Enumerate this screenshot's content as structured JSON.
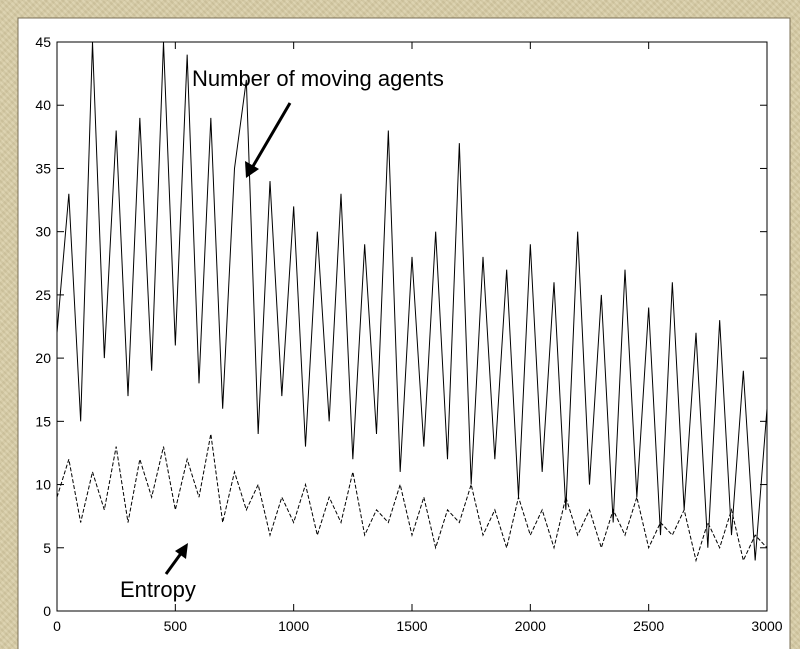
{
  "chart_data": {
    "type": "line",
    "x": [
      0,
      50,
      100,
      150,
      200,
      250,
      300,
      350,
      400,
      450,
      500,
      550,
      600,
      650,
      700,
      750,
      800,
      850,
      900,
      950,
      1000,
      1050,
      1100,
      1150,
      1200,
      1250,
      1300,
      1350,
      1400,
      1450,
      1500,
      1550,
      1600,
      1650,
      1700,
      1750,
      1800,
      1850,
      1900,
      1950,
      2000,
      2050,
      2100,
      2150,
      2200,
      2250,
      2300,
      2350,
      2400,
      2450,
      2500,
      2550,
      2600,
      2650,
      2700,
      2750,
      2800,
      2850,
      2900,
      2950,
      3000
    ],
    "series": [
      {
        "name": "Number of moving agents",
        "color": "#000000",
        "style": "solid",
        "values": [
          22,
          33,
          15,
          45,
          20,
          38,
          17,
          39,
          19,
          45,
          21,
          44,
          18,
          39,
          16,
          35,
          42,
          14,
          34,
          17,
          32,
          13,
          30,
          15,
          33,
          12,
          29,
          14,
          38,
          11,
          28,
          13,
          30,
          12,
          37,
          10,
          28,
          12,
          27,
          9,
          29,
          11,
          26,
          8,
          30,
          10,
          25,
          7,
          27,
          9,
          24,
          6,
          26,
          8,
          22,
          5,
          23,
          6,
          19,
          4,
          16
        ]
      },
      {
        "name": "Entropy",
        "color": "#000000",
        "style": "dashed",
        "values": [
          9,
          12,
          7,
          11,
          8,
          13,
          7,
          12,
          9,
          13,
          8,
          12,
          9,
          14,
          7,
          11,
          8,
          10,
          6,
          9,
          7,
          10,
          6,
          9,
          7,
          11,
          6,
          8,
          7,
          10,
          6,
          9,
          5,
          8,
          7,
          10,
          6,
          8,
          5,
          9,
          6,
          8,
          5,
          9,
          6,
          8,
          5,
          8,
          6,
          9,
          5,
          7,
          6,
          8,
          4,
          7,
          5,
          8,
          4,
          6,
          5
        ]
      }
    ],
    "xlim": [
      0,
      3000
    ],
    "ylim": [
      0,
      45
    ],
    "xticks": [
      0,
      500,
      1000,
      1500,
      2000,
      2500,
      3000
    ],
    "yticks": [
      0,
      5,
      10,
      15,
      20,
      25,
      30,
      35,
      40,
      45
    ],
    "grid": false
  }
}
